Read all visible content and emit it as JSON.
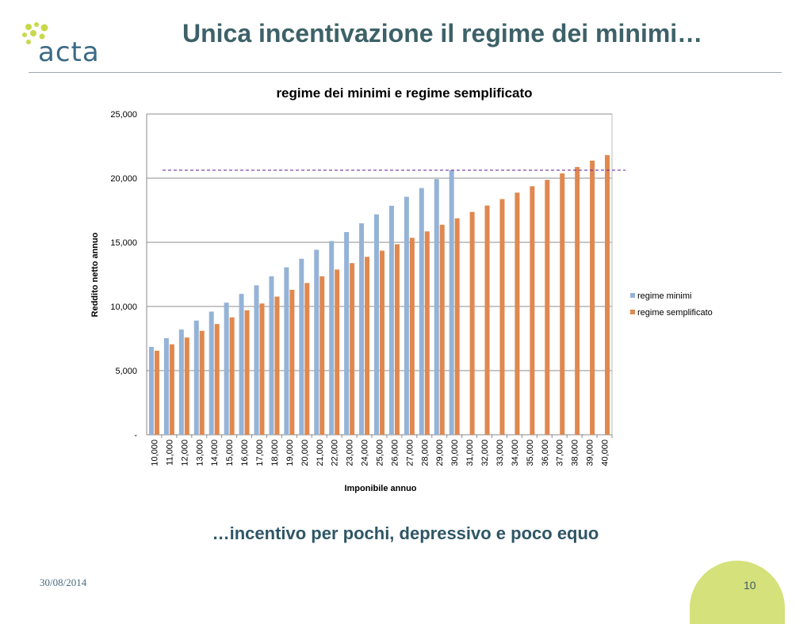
{
  "logo": {
    "text": "acta",
    "dot_color": "#c7d94a",
    "text_color": "#3c6a86"
  },
  "slide": {
    "title": "Unica incentivazione il regime dei minimi…",
    "subtitle": "…incentivo per pochi, depressivo e poco equo",
    "date": "30/08/2014",
    "page_number": "10"
  },
  "chart_data": {
    "type": "bar",
    "title": "regime dei minimi e regime semplificato",
    "xlabel": "Imponibile annuo",
    "ylabel": "Reddito netto annuo",
    "ylim": [
      0,
      25000
    ],
    "yticks": [
      "-",
      "5,000",
      "10,000",
      "15,000",
      "20,000",
      "25,000"
    ],
    "ytick_values": [
      0,
      5000,
      10000,
      15000,
      20000,
      25000
    ],
    "grid": true,
    "legend_position": "right",
    "categories": [
      "10,000",
      "11,000",
      "12,000",
      "13,000",
      "14,000",
      "15,000",
      "16,000",
      "17,000",
      "18,000",
      "19,000",
      "20,000",
      "21,000",
      "22,000",
      "23,000",
      "24,000",
      "25,000",
      "26,000",
      "27,000",
      "28,000",
      "29,000",
      "30,000",
      "31,000",
      "32,000",
      "33,000",
      "34,000",
      "35,000",
      "36,000",
      "37,000",
      "38,000",
      "39,000",
      "40,000"
    ],
    "series": [
      {
        "name": "regime minimi",
        "color": "#95b3d7",
        "values": [
          6850,
          7530,
          8200,
          8900,
          9600,
          10300,
          10980,
          11650,
          12350,
          13050,
          13720,
          14420,
          15100,
          15800,
          16480,
          17180,
          17850,
          18550,
          19230,
          19930,
          20620,
          null,
          null,
          null,
          null,
          null,
          null,
          null,
          null,
          null,
          null
        ]
      },
      {
        "name": "regime semplificato",
        "color": "#e0884f",
        "values": [
          6550,
          7050,
          7580,
          8100,
          8630,
          9150,
          9700,
          10230,
          10770,
          11300,
          11830,
          12350,
          12880,
          13380,
          13870,
          14350,
          14850,
          15350,
          15850,
          16370,
          16870,
          17370,
          17870,
          18370,
          18870,
          19370,
          19870,
          20370,
          20870,
          21370,
          21800
        ]
      }
    ],
    "reference_line": {
      "value": 20620,
      "color": "#7030a0"
    }
  }
}
